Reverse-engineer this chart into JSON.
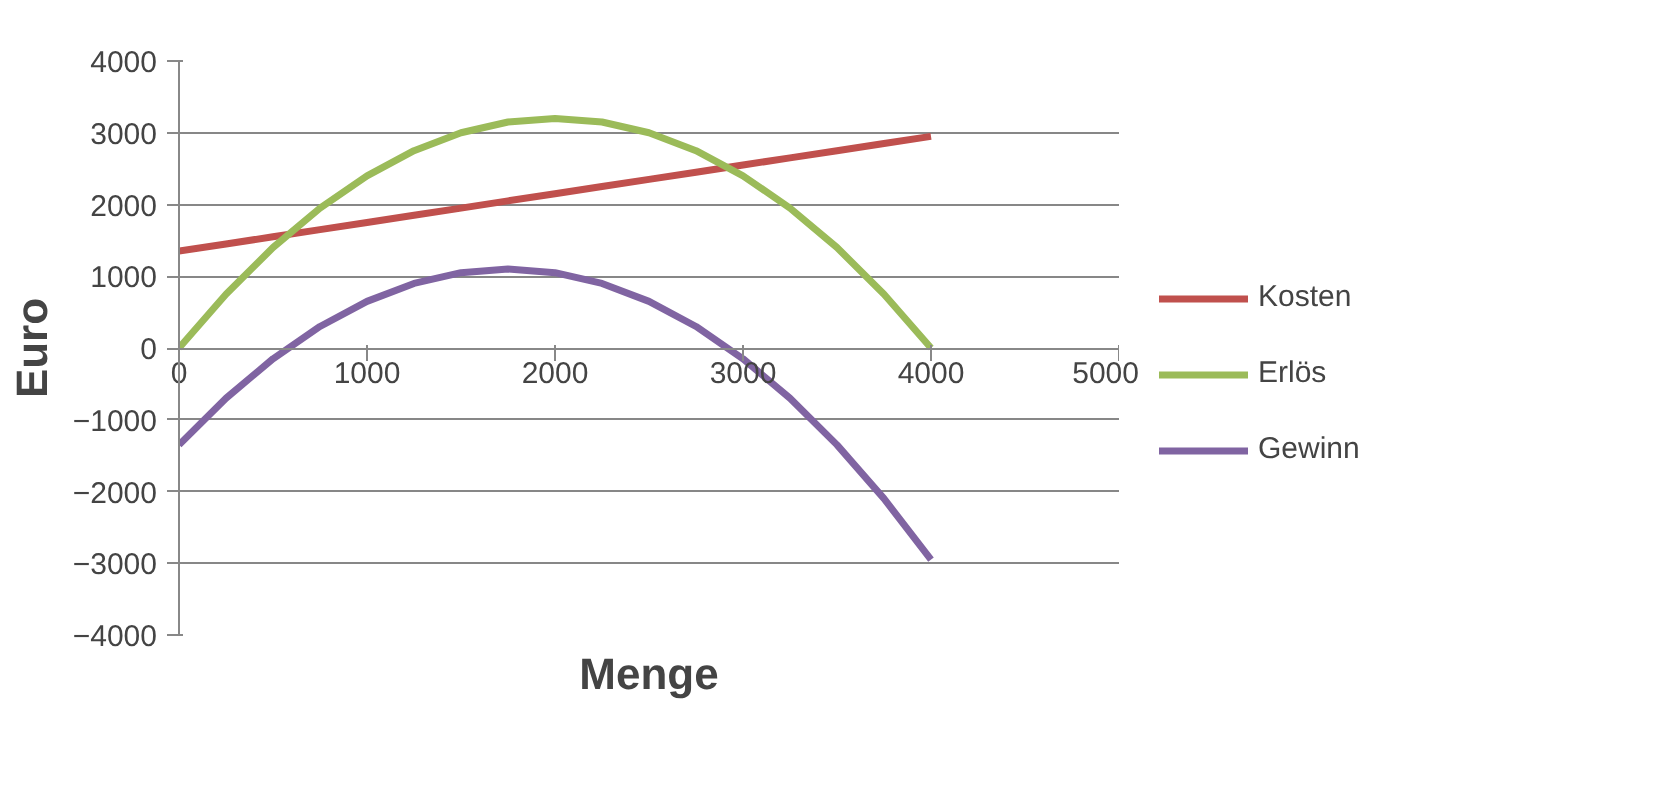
{
  "chart_data": {
    "type": "line",
    "xlabel": "Menge",
    "ylabel": "Euro",
    "x": [
      0,
      250,
      500,
      750,
      1000,
      1250,
      1500,
      1750,
      2000,
      2250,
      2500,
      2750,
      3000,
      3250,
      3500,
      3750,
      4000
    ],
    "series": [
      {
        "name": "Kosten",
        "color": "#c0504d",
        "values": [
          1350,
          1450,
          1550,
          1650,
          1750,
          1850,
          1950,
          2050,
          2150,
          2250,
          2350,
          2450,
          2550,
          2650,
          2750,
          2850,
          2950
        ]
      },
      {
        "name": "Erlös",
        "color": "#9bbb59",
        "values": [
          0,
          750,
          1400,
          1950,
          2400,
          2750,
          3000,
          3150,
          3200,
          3150,
          3000,
          2750,
          2400,
          1950,
          1400,
          750,
          0
        ]
      },
      {
        "name": "Gewinn",
        "color": "#8064a2",
        "values": [
          -1350,
          -700,
          -150,
          300,
          650,
          900,
          1050,
          1100,
          1050,
          900,
          650,
          300,
          -150,
          -700,
          -1350,
          -2100,
          -2950
        ]
      }
    ],
    "xlim": [
      0,
      5000
    ],
    "xticks": [
      0,
      1000,
      2000,
      3000,
      4000,
      5000
    ],
    "ylim": [
      -4000,
      4000
    ],
    "yticks": [
      -4000,
      -3000,
      -2000,
      -1000,
      0,
      1000,
      2000,
      3000,
      4000
    ],
    "grid": "y",
    "legend": "right",
    "marker": "none",
    "line_style": "solid"
  }
}
